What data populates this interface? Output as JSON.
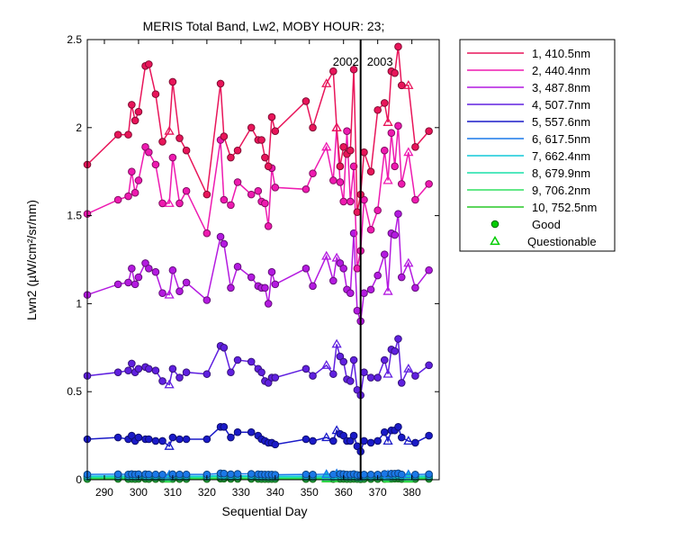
{
  "chart_data": {
    "type": "line",
    "title": "MERIS Total Band, Lw2, MOBY HOUR: 23;",
    "xlabel": "Sequential Day",
    "ylabel": "Lwn2 (µW/cm²/sr/nm)",
    "xlim": [
      285,
      388
    ],
    "ylim": [
      0,
      2.5
    ],
    "xticks": [
      290,
      300,
      310,
      320,
      330,
      340,
      350,
      360,
      370,
      380
    ],
    "yticks": [
      0,
      0.5,
      1,
      1.5,
      2,
      2.5
    ],
    "ytick_labels": [
      "0",
      "0.5",
      "1",
      "1.5",
      "2",
      "2.5"
    ],
    "year_divider": {
      "x": 365,
      "labels": [
        "2002",
        "2003"
      ]
    },
    "legend_position": "outside-right",
    "legend_markers": [
      {
        "label": "Good",
        "marker": "circle",
        "color": "#00cc00"
      },
      {
        "label": "Questionable",
        "marker": "triangle",
        "color": "#00cc00"
      }
    ],
    "questionable_days": [
      309,
      355,
      358,
      373,
      379
    ],
    "x": [
      285,
      294,
      297,
      298,
      299,
      300,
      302,
      303,
      305,
      307,
      309,
      310,
      312,
      314,
      320,
      324,
      325,
      327,
      329,
      333,
      335,
      336,
      337,
      338,
      339,
      340,
      349,
      351,
      355,
      357,
      358,
      359,
      360,
      361,
      362,
      363,
      364,
      365,
      366,
      368,
      370,
      372,
      373,
      374,
      375,
      376,
      377,
      379,
      381,
      385
    ],
    "series": [
      {
        "name": "1, 410.5nm",
        "color": "#e8155a",
        "values": [
          1.79,
          1.96,
          1.96,
          2.13,
          2.04,
          2.09,
          2.35,
          2.36,
          2.19,
          1.92,
          1.98,
          2.26,
          1.94,
          1.87,
          1.62,
          2.25,
          1.95,
          1.83,
          1.87,
          2.0,
          1.93,
          1.93,
          1.83,
          1.78,
          2.06,
          1.98,
          2.15,
          2.0,
          2.25,
          2.32,
          2.0,
          1.78,
          1.89,
          1.85,
          1.87,
          2.33,
          1.52,
          1.62,
          1.86,
          1.75,
          2.1,
          2.14,
          2.03,
          2.32,
          2.31,
          2.46,
          2.24,
          2.24,
          1.89,
          1.98
        ]
      },
      {
        "name": "2, 440.4nm",
        "color": "#ee1ab0",
        "values": [
          1.51,
          1.59,
          1.61,
          1.75,
          1.63,
          1.7,
          1.89,
          1.86,
          1.79,
          1.57,
          1.57,
          1.83,
          1.57,
          1.64,
          1.4,
          1.93,
          1.59,
          1.56,
          1.69,
          1.62,
          1.64,
          1.58,
          1.57,
          1.44,
          1.77,
          1.66,
          1.65,
          1.74,
          1.89,
          1.7,
          2.0,
          1.69,
          1.58,
          1.98,
          1.58,
          1.78,
          1.2,
          1.3,
          1.59,
          1.42,
          1.53,
          1.87,
          1.7,
          1.97,
          1.78,
          2.01,
          1.68,
          1.86,
          1.59,
          1.68
        ]
      },
      {
        "name": "3, 487.8nm",
        "color": "#b41ae0",
        "values": [
          1.05,
          1.11,
          1.12,
          1.2,
          1.11,
          1.15,
          1.23,
          1.2,
          1.18,
          1.06,
          1.05,
          1.19,
          1.07,
          1.12,
          1.02,
          1.38,
          1.34,
          1.09,
          1.21,
          1.15,
          1.1,
          1.09,
          1.09,
          1.0,
          1.18,
          1.11,
          1.2,
          1.1,
          1.27,
          1.13,
          1.26,
          1.23,
          1.2,
          1.08,
          1.06,
          1.4,
          0.96,
          0.9,
          1.06,
          1.08,
          1.16,
          1.28,
          1.07,
          1.4,
          1.39,
          1.51,
          1.15,
          1.23,
          1.09,
          1.19
        ]
      },
      {
        "name": "4, 507.7nm",
        "color": "#6020e0",
        "values": [
          0.59,
          0.61,
          0.62,
          0.66,
          0.61,
          0.63,
          0.64,
          0.63,
          0.62,
          0.56,
          0.54,
          0.63,
          0.58,
          0.61,
          0.6,
          0.76,
          0.75,
          0.61,
          0.68,
          0.67,
          0.63,
          0.61,
          0.56,
          0.55,
          0.58,
          0.58,
          0.63,
          0.59,
          0.65,
          0.6,
          0.77,
          0.7,
          0.67,
          0.57,
          0.56,
          0.68,
          0.51,
          0.48,
          0.61,
          0.58,
          0.58,
          0.68,
          0.6,
          0.74,
          0.73,
          0.8,
          0.55,
          0.63,
          0.59,
          0.65
        ]
      },
      {
        "name": "5, 557.6nm",
        "color": "#1a1ac8",
        "values": [
          0.23,
          0.24,
          0.23,
          0.25,
          0.22,
          0.24,
          0.23,
          0.23,
          0.22,
          0.22,
          0.19,
          0.24,
          0.23,
          0.23,
          0.23,
          0.3,
          0.3,
          0.24,
          0.27,
          0.27,
          0.25,
          0.23,
          0.22,
          0.21,
          0.21,
          0.2,
          0.23,
          0.22,
          0.24,
          0.22,
          0.28,
          0.26,
          0.25,
          0.22,
          0.22,
          0.25,
          0.19,
          0.16,
          0.22,
          0.21,
          0.22,
          0.27,
          0.22,
          0.28,
          0.28,
          0.3,
          0.24,
          0.22,
          0.21,
          0.25
        ]
      },
      {
        "name": "6, 617.5nm",
        "color": "#1a78e8",
        "values": [
          0.03,
          0.031,
          0.03,
          0.032,
          0.03,
          0.031,
          0.031,
          0.03,
          0.03,
          0.029,
          0.028,
          0.031,
          0.03,
          0.03,
          0.03,
          0.036,
          0.035,
          0.031,
          0.033,
          0.033,
          0.031,
          0.03,
          0.029,
          0.029,
          0.029,
          0.028,
          0.03,
          0.029,
          0.031,
          0.03,
          0.035,
          0.033,
          0.032,
          0.029,
          0.029,
          0.032,
          0.027,
          0.026,
          0.029,
          0.029,
          0.029,
          0.033,
          0.029,
          0.034,
          0.034,
          0.036,
          0.03,
          0.03,
          0.029,
          0.031
        ]
      },
      {
        "name": "7, 662.4nm",
        "color": "#12c8d8",
        "values": [
          0.02,
          0.021,
          0.02,
          0.022,
          0.02,
          0.021,
          0.021,
          0.02,
          0.02,
          0.02,
          0.019,
          0.021,
          0.02,
          0.02,
          0.02,
          0.025,
          0.024,
          0.021,
          0.022,
          0.022,
          0.021,
          0.02,
          0.02,
          0.019,
          0.02,
          0.019,
          0.02,
          0.02,
          0.021,
          0.02,
          0.024,
          0.022,
          0.022,
          0.02,
          0.02,
          0.022,
          0.018,
          0.017,
          0.02,
          0.019,
          0.02,
          0.022,
          0.02,
          0.023,
          0.023,
          0.025,
          0.02,
          0.02,
          0.02,
          0.021
        ]
      },
      {
        "name": "8, 679.9nm",
        "color": "#18e0a8",
        "values": [
          0.016,
          0.017,
          0.016,
          0.018,
          0.016,
          0.017,
          0.017,
          0.016,
          0.016,
          0.016,
          0.015,
          0.017,
          0.016,
          0.016,
          0.016,
          0.02,
          0.019,
          0.017,
          0.018,
          0.018,
          0.017,
          0.016,
          0.016,
          0.015,
          0.016,
          0.015,
          0.016,
          0.016,
          0.017,
          0.016,
          0.019,
          0.018,
          0.018,
          0.016,
          0.016,
          0.018,
          0.014,
          0.013,
          0.016,
          0.015,
          0.016,
          0.018,
          0.016,
          0.019,
          0.019,
          0.02,
          0.016,
          0.016,
          0.016,
          0.017
        ]
      },
      {
        "name": "9, 706.2nm",
        "color": "#30e060",
        "values": [
          0.009,
          0.01,
          0.009,
          0.01,
          0.009,
          0.01,
          0.01,
          0.009,
          0.009,
          0.009,
          0.008,
          0.01,
          0.009,
          0.009,
          0.009,
          0.012,
          0.011,
          0.01,
          0.01,
          0.01,
          0.01,
          0.009,
          0.009,
          0.009,
          0.009,
          0.008,
          0.009,
          0.009,
          0.01,
          0.009,
          0.011,
          0.01,
          0.01,
          0.009,
          0.009,
          0.01,
          0.008,
          0.007,
          0.009,
          0.009,
          0.009,
          0.01,
          0.009,
          0.011,
          0.011,
          0.012,
          0.009,
          0.009,
          0.009,
          0.01
        ]
      },
      {
        "name": "10, 752.5nm",
        "color": "#28c828",
        "values": [
          0.004,
          0.005,
          0.004,
          0.005,
          0.004,
          0.005,
          0.005,
          0.004,
          0.004,
          0.004,
          0.004,
          0.005,
          0.004,
          0.004,
          0.004,
          0.006,
          0.006,
          0.005,
          0.005,
          0.005,
          0.005,
          0.004,
          0.004,
          0.004,
          0.004,
          0.004,
          0.004,
          0.004,
          0.005,
          0.004,
          0.006,
          0.005,
          0.005,
          0.004,
          0.004,
          0.005,
          0.004,
          0.003,
          0.004,
          0.004,
          0.004,
          0.005,
          0.004,
          0.006,
          0.006,
          0.006,
          0.004,
          0.004,
          0.004,
          0.005
        ]
      }
    ]
  }
}
